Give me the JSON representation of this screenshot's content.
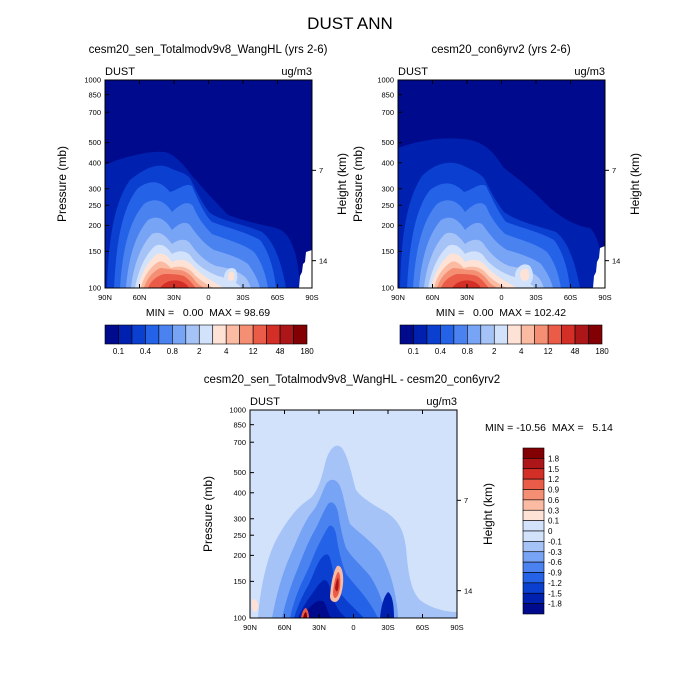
{
  "figure_title": "DUST ANN",
  "chart_data": [
    {
      "type": "contour",
      "panel": "top-left",
      "title": "cesm20_sen_Totalmodv9v8_WangHL (yrs 2-6)",
      "variable": "DUST",
      "units": "ug/m3",
      "xlabel": "",
      "ylabel": "Pressure (mb)",
      "ylabel_right": "Height (km)",
      "x_ticks": [
        "90N",
        "60N",
        "30N",
        "0",
        "30S",
        "60S",
        "90S"
      ],
      "y_ticks": [
        1000,
        850,
        700,
        500,
        400,
        300,
        250,
        200,
        150,
        100
      ],
      "y_right_ticks": [
        7,
        14
      ],
      "stats": "MIN =   0.00  MAX = 98.69",
      "min": 0.0,
      "max": 98.69,
      "colorbar_labels": [
        "0.1",
        "0.4",
        "0.8",
        "2",
        "4",
        "12",
        "48",
        "180"
      ]
    },
    {
      "type": "contour",
      "panel": "top-right",
      "title": "cesm20_con6yrv2 (yrs 2-6)",
      "variable": "DUST",
      "units": "ug/m3",
      "xlabel": "",
      "ylabel": "Pressure (mb)",
      "ylabel_right": "Height (km)",
      "x_ticks": [
        "90N",
        "60N",
        "30N",
        "0",
        "30S",
        "60S",
        "90S"
      ],
      "y_ticks": [
        1000,
        850,
        700,
        500,
        400,
        300,
        250,
        200,
        150,
        100
      ],
      "y_right_ticks": [
        7,
        14
      ],
      "stats": "MIN =   0.00  MAX = 102.42",
      "min": 0.0,
      "max": 102.42,
      "colorbar_labels": [
        "0.1",
        "0.4",
        "0.8",
        "2",
        "4",
        "12",
        "48",
        "180"
      ]
    },
    {
      "type": "contour",
      "panel": "bottom",
      "title": "cesm20_sen_Totalmodv9v8_WangHL - cesm20_con6yrv2",
      "variable": "DUST",
      "units": "ug/m3",
      "xlabel": "",
      "ylabel": "Pressure (mb)",
      "ylabel_right": "Height (km)",
      "x_ticks": [
        "90N",
        "60N",
        "30N",
        "0",
        "30S",
        "60S",
        "90S"
      ],
      "y_ticks": [
        1000,
        850,
        700,
        500,
        400,
        300,
        250,
        200,
        150,
        100
      ],
      "y_right_ticks": [
        7,
        14
      ],
      "stats": "MIN = -10.56  MAX =   5.14",
      "min": -10.56,
      "max": 5.14,
      "colorbar_labels": [
        "1.8",
        "1.5",
        "1.2",
        "0.9",
        "0.6",
        "0.3",
        "0.1",
        "0",
        "-0.1",
        "-0.3",
        "-0.6",
        "-0.9",
        "-1.2",
        "-1.5",
        "-1.8"
      ]
    }
  ],
  "colors": {
    "abs_scale": [
      "#000a8c",
      "#0021b0",
      "#0a3fd0",
      "#2462e8",
      "#4a82f0",
      "#78a4f5",
      "#a6c3f7",
      "#d2e2fb",
      "#ffe2d6",
      "#fbbaa2",
      "#f58f74",
      "#ea5c48",
      "#d42f27",
      "#ac1618",
      "#820003"
    ],
    "diff_scale": [
      "#000a8c",
      "#0021b0",
      "#0a3fd0",
      "#2462e8",
      "#4a82f0",
      "#78a4f5",
      "#a6c3f7",
      "#d2e2fb",
      "#d2e2fb",
      "#ffe2d6",
      "#fbbaa2",
      "#f58f74",
      "#ea5c48",
      "#d42f27",
      "#ac1618",
      "#820003"
    ]
  }
}
